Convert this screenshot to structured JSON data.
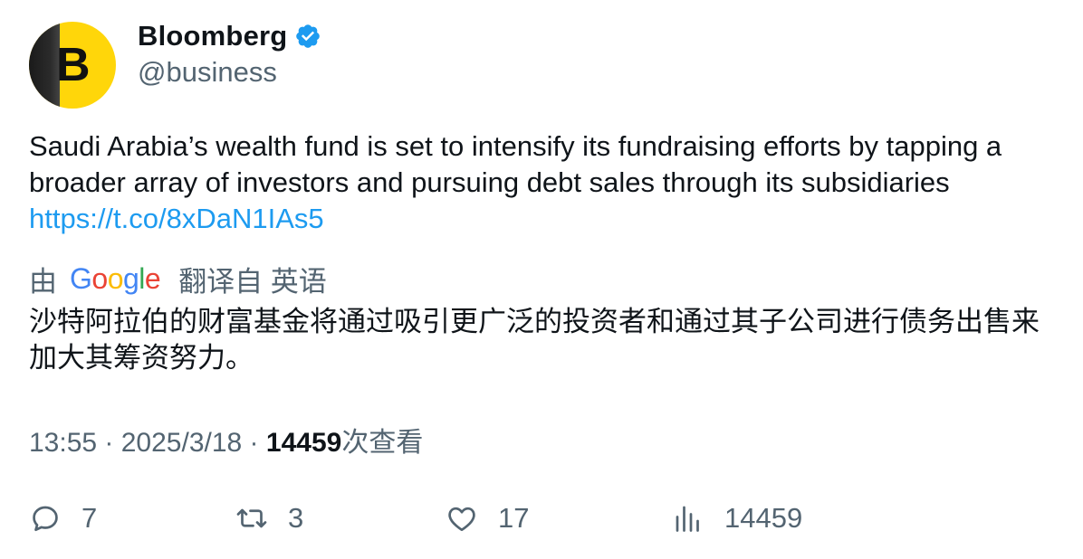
{
  "author": {
    "name": "Bloomberg",
    "handle": "@business",
    "avatar_letter": "B",
    "verified_icon": "verified-badge-icon",
    "verified_color": "#1d9bf0"
  },
  "tweet": {
    "text": "Saudi Arabia’s wealth fund is set to intensify its fundraising efforts by tapping a broader array of investors and pursuing debt sales through its subsidiaries",
    "link": "https://t.co/8xDaN1IAs5"
  },
  "translation": {
    "by_label": "由",
    "provider_letters": [
      "G",
      "o",
      "o",
      "g",
      "l",
      "e"
    ],
    "provider_colors": [
      "#4285f4",
      "#ea4335",
      "#fbbc05",
      "#4285f4",
      "#34a853",
      "#ea4335"
    ],
    "label": "翻译自 英语",
    "text": "沙特阿拉伯的财富基金将通过吸引更广泛的投资者和通过其子公司进行债务出售来加大其筹资努力。"
  },
  "meta": {
    "time": "13:55",
    "sep1": " · ",
    "date": "2025/3/18",
    "sep2": " · ",
    "views_count": "14459",
    "views_label": "次查看"
  },
  "actions": {
    "replies": "7",
    "retweets": "3",
    "likes": "17",
    "views": "14459"
  },
  "colors": {
    "text": "#0f1419",
    "secondary": "#536471",
    "link": "#1d9bf0",
    "avatar_bg": "#ffd60a"
  }
}
